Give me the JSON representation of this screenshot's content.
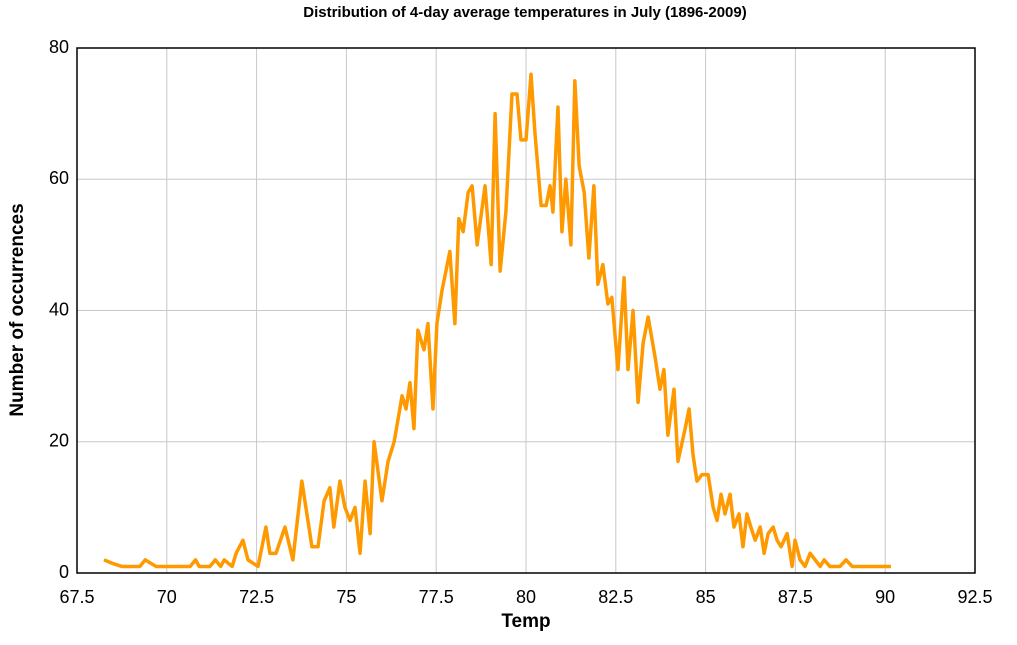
{
  "chart_data": {
    "type": "line",
    "title": "Distribution of 4-day average temperatures in July (1896-2009)",
    "x_label": "Temp",
    "y_label": "Number of occurrences",
    "x": [
      68.25,
      68.47,
      68.75,
      69.25,
      69.4,
      69.7,
      70.65,
      70.8,
      70.9,
      71.2,
      71.35,
      71.5,
      71.6,
      71.82,
      71.93,
      72.12,
      72.26,
      72.54,
      72.76,
      72.87,
      73.04,
      73.29,
      73.51,
      73.76,
      74.04,
      74.21,
      74.38,
      74.54,
      74.65,
      74.82,
      74.96,
      75.1,
      75.24,
      75.38,
      75.52,
      75.66,
      75.77,
      75.99,
      76.16,
      76.33,
      76.55,
      76.66,
      76.77,
      76.88,
      76.99,
      77.16,
      77.27,
      77.41,
      77.52,
      77.66,
      77.88,
      78.02,
      78.13,
      78.25,
      78.39,
      78.5,
      78.64,
      78.86,
      79.03,
      79.14,
      79.28,
      79.44,
      79.61,
      79.75,
      79.86,
      80.0,
      80.14,
      80.25,
      80.42,
      80.56,
      80.67,
      80.75,
      80.89,
      81.0,
      81.11,
      81.25,
      81.36,
      81.48,
      81.62,
      81.75,
      81.89,
      82.0,
      82.14,
      82.28,
      82.39,
      82.56,
      82.73,
      82.84,
      82.98,
      83.12,
      83.26,
      83.4,
      83.59,
      83.73,
      83.84,
      83.95,
      84.12,
      84.23,
      84.43,
      84.54,
      84.65,
      84.76,
      84.9,
      85.07,
      85.21,
      85.32,
      85.43,
      85.54,
      85.68,
      85.79,
      85.93,
      86.04,
      86.15,
      86.26,
      86.38,
      86.52,
      86.63,
      86.74,
      86.88,
      86.99,
      87.1,
      87.27,
      87.41,
      87.49,
      87.63,
      87.77,
      87.91,
      88.05,
      88.19,
      88.3,
      88.46,
      88.74,
      88.91,
      89.08,
      89.58,
      90.16
    ],
    "series": [
      {
        "color": "#ff9900",
        "values": [
          2,
          1.5,
          1,
          1,
          2,
          1,
          1,
          2,
          1,
          1,
          2,
          1,
          2,
          1,
          3,
          5,
          2,
          1,
          7,
          3,
          3,
          7,
          2,
          14,
          4,
          4,
          11,
          13,
          7,
          14,
          10,
          8,
          10,
          3,
          14,
          6,
          20,
          11,
          17,
          20,
          27,
          25,
          29,
          22,
          37,
          34,
          38,
          25,
          38,
          43,
          49,
          38,
          54,
          52,
          58,
          59,
          50,
          59,
          47,
          70,
          46,
          55,
          73,
          73,
          66,
          66,
          76,
          67,
          56,
          56,
          59,
          55,
          71,
          52,
          60,
          50,
          75,
          62,
          58,
          48,
          59,
          44,
          47,
          41,
          42,
          31,
          45,
          31,
          40,
          26,
          35,
          39,
          33,
          28,
          31,
          21,
          28,
          17,
          22,
          25,
          18,
          14,
          15,
          15,
          10,
          8,
          12,
          9,
          12,
          7,
          9,
          4,
          9,
          7,
          5,
          7,
          3,
          6,
          7,
          5,
          4,
          6,
          1,
          5,
          2,
          1,
          3,
          2,
          1,
          2,
          1,
          1,
          2,
          1,
          1,
          1
        ]
      }
    ],
    "xlim": [
      67.5,
      92.5
    ],
    "xticks": [
      67.5,
      70,
      72.5,
      75,
      77.5,
      80,
      82.5,
      85,
      87.5,
      90,
      92.5
    ],
    "ylim": [
      0,
      80
    ],
    "yticks": [
      0,
      20,
      40,
      60,
      80
    ],
    "grid": true
  }
}
